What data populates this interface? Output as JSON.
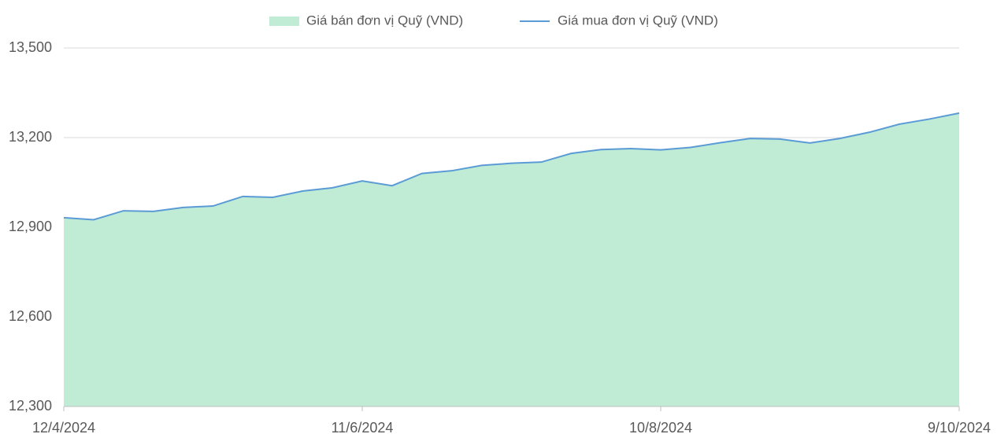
{
  "chart_data": {
    "type": "area-line",
    "categories": [
      "12/4/2024",
      null,
      null,
      null,
      null,
      null,
      null,
      null,
      null,
      null,
      "11/6/2024",
      null,
      null,
      null,
      null,
      null,
      null,
      null,
      null,
      null,
      "10/8/2024",
      null,
      null,
      null,
      null,
      null,
      null,
      null,
      null,
      null,
      "9/10/2024"
    ],
    "series": [
      {
        "name": "Giá bán đơn vị Quỹ (VND)",
        "color": "#c0ecd6",
        "values": [
          12932,
          12925,
          12955,
          12953,
          12966,
          12971,
          13003,
          13000,
          13021,
          13032,
          13055,
          13039,
          13080,
          13089,
          13107,
          13114,
          13118,
          13147,
          13160,
          13163,
          13159,
          13167,
          13183,
          13197,
          13195,
          13182,
          13197,
          13218,
          13245,
          13262,
          13282
        ]
      },
      {
        "name": "Giá mua đơn vị Quỹ (VND)",
        "color": "#5b9bd5",
        "values": [
          12932,
          12925,
          12955,
          12953,
          12966,
          12971,
          13003,
          13000,
          13021,
          13032,
          13055,
          13039,
          13080,
          13089,
          13107,
          13114,
          13118,
          13147,
          13160,
          13163,
          13159,
          13167,
          13183,
          13197,
          13195,
          13182,
          13197,
          13218,
          13245,
          13262,
          13282
        ]
      }
    ],
    "ylim": [
      12300,
      13500
    ],
    "yticks": [
      {
        "value": 12300,
        "label": "12,300"
      },
      {
        "value": 12600,
        "label": "12,600"
      },
      {
        "value": 12900,
        "label": "12,900"
      },
      {
        "value": 13200,
        "label": "13,200"
      },
      {
        "value": 13500,
        "label": "13,500"
      }
    ],
    "grid": true
  }
}
